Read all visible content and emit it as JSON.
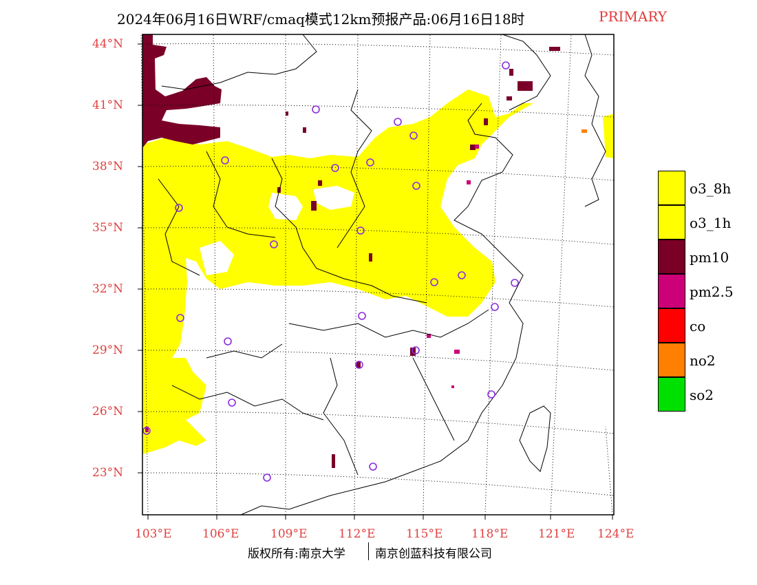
{
  "title": {
    "main": "2024年06月16日WRF/cmaq模式12km预报产品:06月16日18时",
    "tag": "PRIMARY",
    "tag_color": "#e03a3a"
  },
  "axes": {
    "lat_ticks": [
      "44°N",
      "41°N",
      "38°N",
      "35°N",
      "32°N",
      "29°N",
      "26°N",
      "23°N"
    ],
    "lon_ticks": [
      "103°E",
      "106°E",
      "109°E",
      "112°E",
      "115°E",
      "118°E",
      "121°E",
      "124°E"
    ],
    "tick_color": "#e04040"
  },
  "legend": {
    "items": [
      {
        "label": "o3_8h",
        "color": "#ffff00"
      },
      {
        "label": "o3_1h",
        "color": "#ffff00"
      },
      {
        "label": "pm10",
        "color": "#7a0028"
      },
      {
        "label": "pm2.5",
        "color": "#cc0077"
      },
      {
        "label": "co",
        "color": "#ff0000"
      },
      {
        "label": "no2",
        "color": "#ff7f00"
      },
      {
        "label": "so2",
        "color": "#00e000"
      }
    ]
  },
  "footer": {
    "left": "版权所有:南京大学",
    "right": "南京创蓝科技有限公司"
  }
}
